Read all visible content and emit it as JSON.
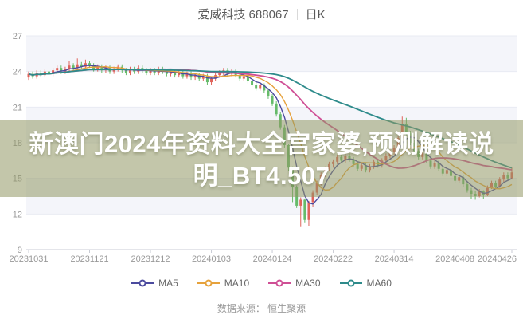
{
  "header": {
    "symbol_title": "爱威科技 688067",
    "period_label": "日K"
  },
  "overlay_banner": {
    "line1": "新澳门2024年资料大全宫家婆,预测解读说",
    "line2": "明_BT4.507",
    "background": "#92975f",
    "text_color": "#ffffff"
  },
  "legend": {
    "items": [
      {
        "label": "MA5",
        "color": "#4b4a9e"
      },
      {
        "label": "MA10",
        "color": "#e6a23c"
      },
      {
        "label": "MA30",
        "color": "#cf4f95"
      },
      {
        "label": "MA60",
        "color": "#2e8b8b"
      }
    ]
  },
  "footer": {
    "data_source": "数据来源： 恒生聚源"
  },
  "chart_data": {
    "type": "candlestick",
    "title": "爱威科技 688067 日K",
    "ylim": [
      9,
      27
    ],
    "y_ticks": [
      27,
      24,
      21,
      18,
      15,
      12,
      9
    ],
    "x_ticks": [
      {
        "label": "20231031",
        "index": 0
      },
      {
        "label": "20231121",
        "index": 15
      },
      {
        "label": "20231212",
        "index": 30
      },
      {
        "label": "20240103",
        "index": 45
      },
      {
        "label": "20240124",
        "index": 60
      },
      {
        "label": "20240222",
        "index": 75
      },
      {
        "label": "20240314",
        "index": 90
      },
      {
        "label": "20240408",
        "index": 105
      },
      {
        "label": "20240426",
        "index": 119
      }
    ],
    "grid": true,
    "band_color": "#f4f5fa",
    "grid_color": "#e9ebf3",
    "axis_color": "#c8cbd4",
    "tick_label_color": "#999999",
    "up_color": "#e0635a",
    "down_color": "#66bb6a",
    "ma_periods": [
      5,
      10,
      30,
      60
    ],
    "candles": [
      [
        23.5,
        24.0,
        23.3,
        23.8
      ],
      [
        23.8,
        24.0,
        23.4,
        23.6
      ],
      [
        23.6,
        24.1,
        23.4,
        23.9
      ],
      [
        23.9,
        24.1,
        23.5,
        23.7
      ],
      [
        23.7,
        24.2,
        23.5,
        24.0
      ],
      [
        24.0,
        24.2,
        23.6,
        23.8
      ],
      [
        23.8,
        24.3,
        23.6,
        24.1
      ],
      [
        24.1,
        24.5,
        23.9,
        24.3
      ],
      [
        24.3,
        24.5,
        23.8,
        24.0
      ],
      [
        24.0,
        24.4,
        23.8,
        24.2
      ],
      [
        24.2,
        24.9,
        24.0,
        24.5
      ],
      [
        24.5,
        24.7,
        24.1,
        24.3
      ],
      [
        24.3,
        25.1,
        24.1,
        24.6
      ],
      [
        24.6,
        24.8,
        24.2,
        24.4
      ],
      [
        24.4,
        25.0,
        24.2,
        24.7
      ],
      [
        24.7,
        24.9,
        24.3,
        24.5
      ],
      [
        24.5,
        24.7,
        24.0,
        24.2
      ],
      [
        24.2,
        24.6,
        24.0,
        24.4
      ],
      [
        24.4,
        24.6,
        23.9,
        24.1
      ],
      [
        24.1,
        24.5,
        23.9,
        24.3
      ],
      [
        24.3,
        24.5,
        23.8,
        24.0
      ],
      [
        24.0,
        24.4,
        23.8,
        24.2
      ],
      [
        24.2,
        24.6,
        24.0,
        24.4
      ],
      [
        24.4,
        24.6,
        23.9,
        24.1
      ],
      [
        24.1,
        24.3,
        23.7,
        23.9
      ],
      [
        23.9,
        24.4,
        23.7,
        24.2
      ],
      [
        24.2,
        24.4,
        23.8,
        24.0
      ],
      [
        24.0,
        24.5,
        23.8,
        24.3
      ],
      [
        24.3,
        24.5,
        23.9,
        24.1
      ],
      [
        24.1,
        24.3,
        23.7,
        23.9
      ],
      [
        23.9,
        24.3,
        23.7,
        24.1
      ],
      [
        24.1,
        24.3,
        23.7,
        23.9
      ],
      [
        23.9,
        24.4,
        23.7,
        24.2
      ],
      [
        24.2,
        24.4,
        23.8,
        24.0
      ],
      [
        24.0,
        24.2,
        23.6,
        23.8
      ],
      [
        23.8,
        24.2,
        23.6,
        24.0
      ],
      [
        24.0,
        24.2,
        23.5,
        23.7
      ],
      [
        23.7,
        24.1,
        23.5,
        23.9
      ],
      [
        23.9,
        24.1,
        23.4,
        23.6
      ],
      [
        23.6,
        24.0,
        23.4,
        23.8
      ],
      [
        23.8,
        24.0,
        23.3,
        23.5
      ],
      [
        23.5,
        23.9,
        23.3,
        23.7
      ],
      [
        23.7,
        23.9,
        23.2,
        23.4
      ],
      [
        23.4,
        23.8,
        23.2,
        23.6
      ],
      [
        23.6,
        23.8,
        22.9,
        23.1
      ],
      [
        23.1,
        23.6,
        22.9,
        23.4
      ],
      [
        23.4,
        23.9,
        23.2,
        23.7
      ],
      [
        23.7,
        24.1,
        23.5,
        23.9
      ],
      [
        23.9,
        24.3,
        23.7,
        24.1
      ],
      [
        24.1,
        24.3,
        23.6,
        23.8
      ],
      [
        23.8,
        24.2,
        23.6,
        24.0
      ],
      [
        24.0,
        24.2,
        23.5,
        23.7
      ],
      [
        23.7,
        23.9,
        23.2,
        23.4
      ],
      [
        23.4,
        23.8,
        23.2,
        23.6
      ],
      [
        23.6,
        23.8,
        23.0,
        23.2
      ],
      [
        23.2,
        23.4,
        22.7,
        22.9
      ],
      [
        22.9,
        23.1,
        22.4,
        22.6
      ],
      [
        22.6,
        23.1,
        22.4,
        22.9
      ],
      [
        22.9,
        23.0,
        22.2,
        22.4
      ],
      [
        22.4,
        22.6,
        21.7,
        21.9
      ],
      [
        21.9,
        22.1,
        21.1,
        21.3
      ],
      [
        21.3,
        21.5,
        20.2,
        20.4
      ],
      [
        20.4,
        20.6,
        19.1,
        19.3
      ],
      [
        19.3,
        19.5,
        17.6,
        17.8
      ],
      [
        17.8,
        17.9,
        15.6,
        15.9
      ],
      [
        15.9,
        16.0,
        13.0,
        14.3
      ],
      [
        14.3,
        14.4,
        12.5,
        12.7
      ],
      [
        12.7,
        13.4,
        10.9,
        13.2
      ],
      [
        13.2,
        13.3,
        11.3,
        11.5
      ],
      [
        11.5,
        13.1,
        11.0,
        13.0
      ],
      [
        13.0,
        14.0,
        12.6,
        13.8
      ],
      [
        13.8,
        14.8,
        13.6,
        14.6
      ],
      [
        14.6,
        15.5,
        14.4,
        15.3
      ],
      [
        15.3,
        16.0,
        15.1,
        15.8
      ],
      [
        15.8,
        16.4,
        15.6,
        16.2
      ],
      [
        16.2,
        16.6,
        15.9,
        16.4
      ],
      [
        16.4,
        17.0,
        16.2,
        16.8
      ],
      [
        16.8,
        17.0,
        16.3,
        16.5
      ],
      [
        16.5,
        17.1,
        16.3,
        16.9
      ],
      [
        16.9,
        17.1,
        16.4,
        16.6
      ],
      [
        16.6,
        16.8,
        16.0,
        16.2
      ],
      [
        16.2,
        16.4,
        15.6,
        15.8
      ],
      [
        15.8,
        16.3,
        15.6,
        16.1
      ],
      [
        16.1,
        16.3,
        15.5,
        15.7
      ],
      [
        15.7,
        16.2,
        15.5,
        16.0
      ],
      [
        16.0,
        16.6,
        15.8,
        16.4
      ],
      [
        16.4,
        16.6,
        15.9,
        16.1
      ],
      [
        16.1,
        16.7,
        15.9,
        16.5
      ],
      [
        16.5,
        17.1,
        16.3,
        16.9
      ],
      [
        16.9,
        17.4,
        16.7,
        17.2
      ],
      [
        17.2,
        17.8,
        17.0,
        17.6
      ],
      [
        17.6,
        18.6,
        17.4,
        18.4
      ],
      [
        18.4,
        20.2,
        18.2,
        19.6
      ],
      [
        19.6,
        20.1,
        18.6,
        18.8
      ],
      [
        18.8,
        19.0,
        17.8,
        18.0
      ],
      [
        18.0,
        18.2,
        17.1,
        17.3
      ],
      [
        17.3,
        17.5,
        16.6,
        16.8
      ],
      [
        16.8,
        17.3,
        16.6,
        17.1
      ],
      [
        17.1,
        17.3,
        16.3,
        16.5
      ],
      [
        16.5,
        16.7,
        15.8,
        16.0
      ],
      [
        16.0,
        16.5,
        15.8,
        16.3
      ],
      [
        16.3,
        16.5,
        15.6,
        15.8
      ],
      [
        15.8,
        16.0,
        15.2,
        15.4
      ],
      [
        15.4,
        15.9,
        15.2,
        15.7
      ],
      [
        15.7,
        15.9,
        15.0,
        15.2
      ],
      [
        15.2,
        15.4,
        14.6,
        14.8
      ],
      [
        14.8,
        15.3,
        14.6,
        15.1
      ],
      [
        15.1,
        15.3,
        14.3,
        14.5
      ],
      [
        14.5,
        14.7,
        13.8,
        14.0
      ],
      [
        14.0,
        14.2,
        13.3,
        13.7
      ],
      [
        13.7,
        13.9,
        13.2,
        13.5
      ],
      [
        13.5,
        14.1,
        13.4,
        13.9
      ],
      [
        13.9,
        14.0,
        13.3,
        13.6
      ],
      [
        13.6,
        14.4,
        13.5,
        14.2
      ],
      [
        14.2,
        14.8,
        14.1,
        14.6
      ],
      [
        14.6,
        14.8,
        14.1,
        14.3
      ],
      [
        14.3,
        15.1,
        14.2,
        14.9
      ],
      [
        14.9,
        15.5,
        14.7,
        15.3
      ],
      [
        15.3,
        15.5,
        14.8,
        15.0
      ],
      [
        15.0,
        15.9,
        14.9,
        15.5
      ]
    ]
  }
}
